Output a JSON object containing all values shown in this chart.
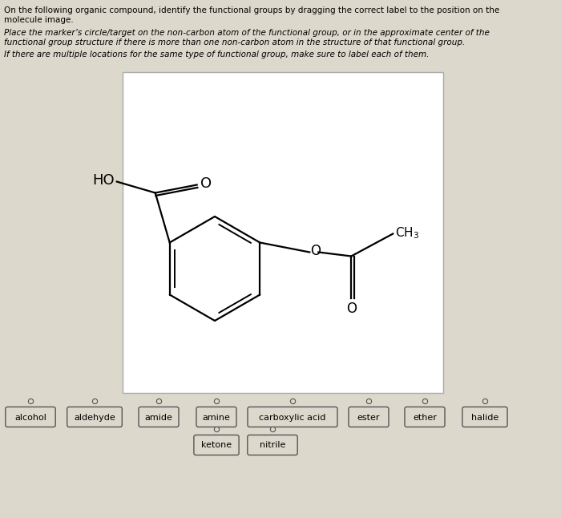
{
  "bg_color": "#ddd8cc",
  "white_box_color": "#ffffff",
  "title_line1": "On the following organic compound, identify the functional groups by dragging the correct label to the position on the",
  "title_line2": "molecule image.",
  "instruction1": "Place the marker’s circle/target on the non-carbon atom of the functional group, or in the approximate center of the",
  "instruction1b": "functional group structure if there is more than one non-carbon atom in the structure of that functional group.",
  "instruction2": "If there are multiple locations for the same type of functional group, make sure to label each of them.",
  "labels": [
    "alcohol",
    "aldehyde",
    "amide",
    "amine",
    "carboxylic acid",
    "ester",
    "ether",
    "halide"
  ],
  "labels_row2": [
    "ketone",
    "nitrile"
  ],
  "label_font_size": 8,
  "text_font_size": 7.5
}
